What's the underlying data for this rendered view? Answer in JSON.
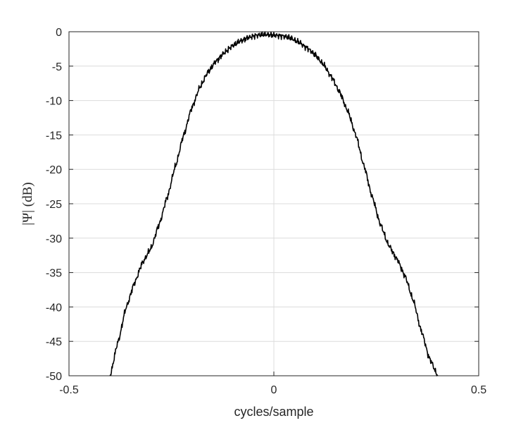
{
  "chart_data": {
    "type": "line",
    "xlabel": "cycles/sample",
    "ylabel": "|Ψ| (dB)",
    "xlim": [
      -0.5,
      0.5
    ],
    "ylim": [
      -50,
      0
    ],
    "grid": true,
    "xticks": [
      "-0.5",
      "0",
      "0.5"
    ],
    "xtick_values": [
      -0.5,
      0,
      0.5
    ],
    "yticks": [
      "0",
      "-5",
      "-10",
      "-15",
      "-20",
      "-25",
      "-30",
      "-35",
      "-40",
      "-45",
      "-50"
    ],
    "ytick_values": [
      0,
      -5,
      -10,
      -15,
      -20,
      -25,
      -30,
      -35,
      -40,
      -45,
      -50
    ],
    "series": [
      {
        "color": "#000000",
        "x": [
          -0.4,
          -0.38,
          -0.36,
          -0.34,
          -0.32,
          -0.3,
          -0.28,
          -0.26,
          -0.24,
          -0.22,
          -0.2,
          -0.18,
          -0.16,
          -0.14,
          -0.12,
          -0.1,
          -0.08,
          -0.06,
          -0.04,
          -0.02,
          0.0,
          0.02,
          0.04,
          0.06,
          0.08,
          0.1,
          0.12,
          0.14,
          0.16,
          0.18,
          0.2,
          0.22,
          0.24,
          0.26,
          0.28,
          0.3,
          0.32,
          0.34,
          0.36,
          0.38,
          0.4
        ],
        "y": [
          -50,
          -45,
          -40,
          -36.5,
          -33.5,
          -31.5,
          -28,
          -24,
          -19.5,
          -15,
          -11,
          -8,
          -5.8,
          -4.2,
          -3.0,
          -2.0,
          -1.3,
          -0.8,
          -0.5,
          -0.4,
          -0.5,
          -0.6,
          -0.9,
          -1.5,
          -2.3,
          -3.3,
          -4.7,
          -6.5,
          -8.7,
          -11.5,
          -15,
          -19.5,
          -24,
          -28,
          -31,
          -33,
          -35.5,
          -39,
          -43.5,
          -47.5,
          -50
        ]
      }
    ]
  }
}
